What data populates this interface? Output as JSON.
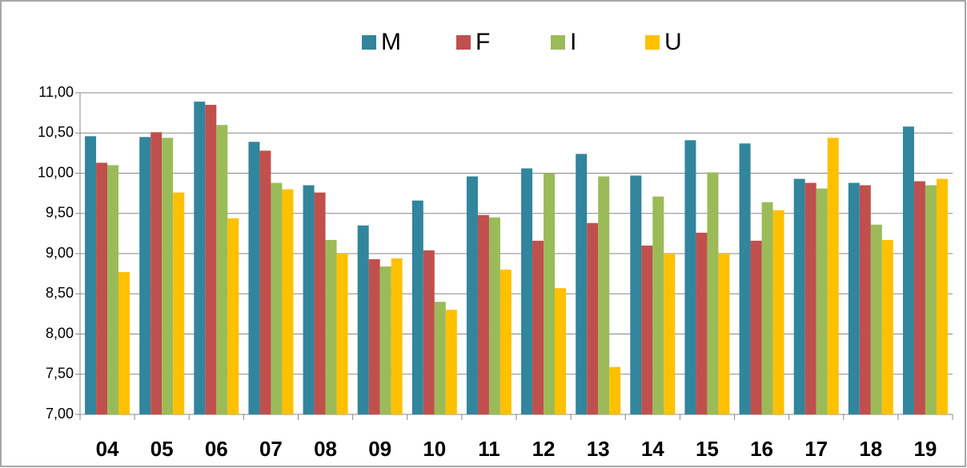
{
  "chart_data": {
    "type": "bar",
    "categories": [
      "04",
      "05",
      "06",
      "07",
      "08",
      "09",
      "10",
      "11",
      "12",
      "13",
      "14",
      "15",
      "16",
      "17",
      "18",
      "19"
    ],
    "series": [
      {
        "name": "M",
        "color": "#31859c",
        "values": [
          10.46,
          10.45,
          10.89,
          10.39,
          9.85,
          9.35,
          9.66,
          9.96,
          10.06,
          10.24,
          9.97,
          10.41,
          10.37,
          9.93,
          9.88,
          10.58
        ]
      },
      {
        "name": "F",
        "color": "#c0504d",
        "values": [
          10.13,
          10.51,
          10.85,
          10.28,
          9.76,
          8.93,
          9.04,
          9.48,
          9.16,
          9.38,
          9.1,
          9.26,
          9.16,
          9.88,
          9.85,
          9.9
        ]
      },
      {
        "name": "I",
        "color": "#9bbb59",
        "values": [
          10.1,
          10.44,
          10.6,
          9.88,
          9.17,
          8.84,
          8.4,
          9.45,
          10.0,
          9.96,
          9.71,
          10.01,
          9.64,
          9.81,
          9.36,
          9.85
        ]
      },
      {
        "name": "U",
        "color": "#ffc000",
        "values": [
          8.77,
          9.76,
          9.44,
          9.8,
          9.0,
          8.94,
          8.3,
          8.8,
          8.57,
          7.59,
          9.0,
          9.0,
          9.54,
          10.44,
          9.17,
          9.93
        ]
      }
    ],
    "ylim": [
      7,
      11
    ],
    "yticks": [
      {
        "value": 7,
        "label": "7,00"
      },
      {
        "value": 7.5,
        "label": "7,50"
      },
      {
        "value": 8,
        "label": "8,00"
      },
      {
        "value": 8.5,
        "label": "8,50"
      },
      {
        "value": 9,
        "label": "9,00"
      },
      {
        "value": 9.5,
        "label": "9,50"
      },
      {
        "value": 10,
        "label": "10,00"
      },
      {
        "value": 10.5,
        "label": "10,50"
      },
      {
        "value": 11,
        "label": "11,00"
      }
    ],
    "grid": true,
    "legend": "top"
  }
}
